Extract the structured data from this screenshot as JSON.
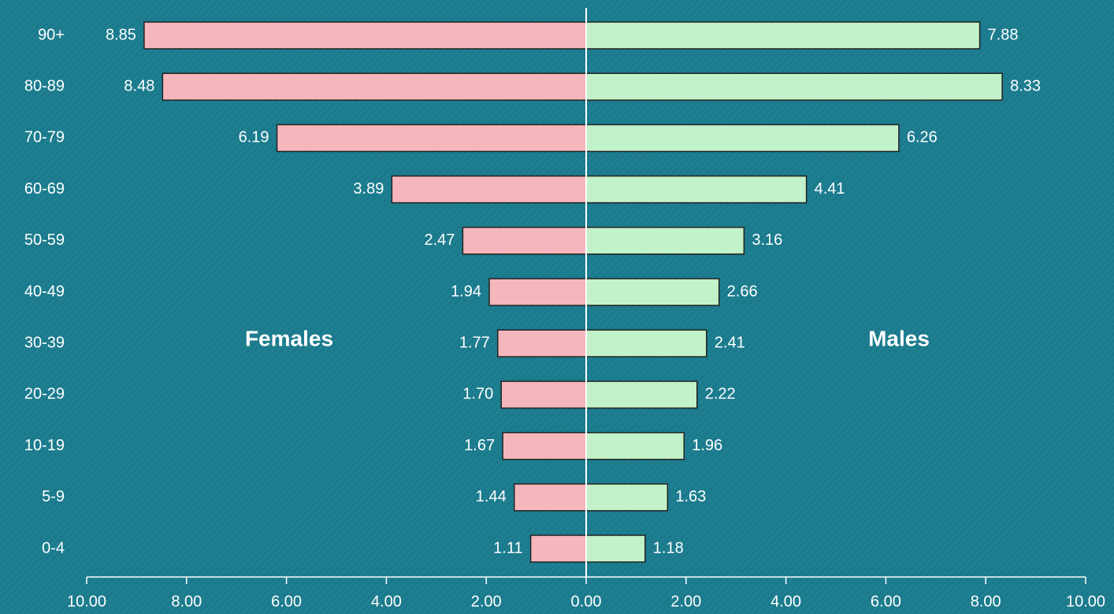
{
  "chart_data": {
    "type": "butterfly",
    "categories": [
      "90+",
      "80-89",
      "70-79",
      "60-69",
      "50-59",
      "40-49",
      "30-39",
      "20-29",
      "10-19",
      "5-9",
      "0-4"
    ],
    "series": [
      {
        "name": "Females",
        "color": "#f5b7bc",
        "side": "left",
        "values": [
          8.85,
          8.48,
          6.19,
          3.89,
          2.47,
          1.94,
          1.77,
          1.7,
          1.67,
          1.44,
          1.11
        ],
        "value_labels": [
          "8.85",
          "8.48",
          "6.19",
          "3.89",
          "2.47",
          "1.94",
          "1.77",
          "1.70",
          "1.67",
          "1.44",
          "1.11"
        ]
      },
      {
        "name": "Males",
        "color": "#c2f2c9",
        "side": "right",
        "values": [
          7.88,
          8.33,
          6.26,
          4.41,
          3.16,
          2.66,
          2.41,
          2.22,
          1.96,
          1.63,
          1.18
        ],
        "value_labels": [
          "7.88",
          "8.33",
          "6.26",
          "4.41",
          "3.16",
          "2.66",
          "2.41",
          "2.22",
          "1.96",
          "1.63",
          "1.18"
        ]
      }
    ],
    "xlim": [
      -10,
      10
    ],
    "xticks": [
      {
        "value": -10,
        "label": "10.00"
      },
      {
        "value": -8,
        "label": "8.00"
      },
      {
        "value": -6,
        "label": "6.00"
      },
      {
        "value": -4,
        "label": "4.00"
      },
      {
        "value": -2,
        "label": "2.00"
      },
      {
        "value": 0,
        "label": "0.00"
      },
      {
        "value": 2,
        "label": "2.00"
      },
      {
        "value": 4,
        "label": "4.00"
      },
      {
        "value": 6,
        "label": "6.00"
      },
      {
        "value": 8,
        "label": "8.00"
      },
      {
        "value": 10,
        "label": "10.00"
      }
    ]
  }
}
